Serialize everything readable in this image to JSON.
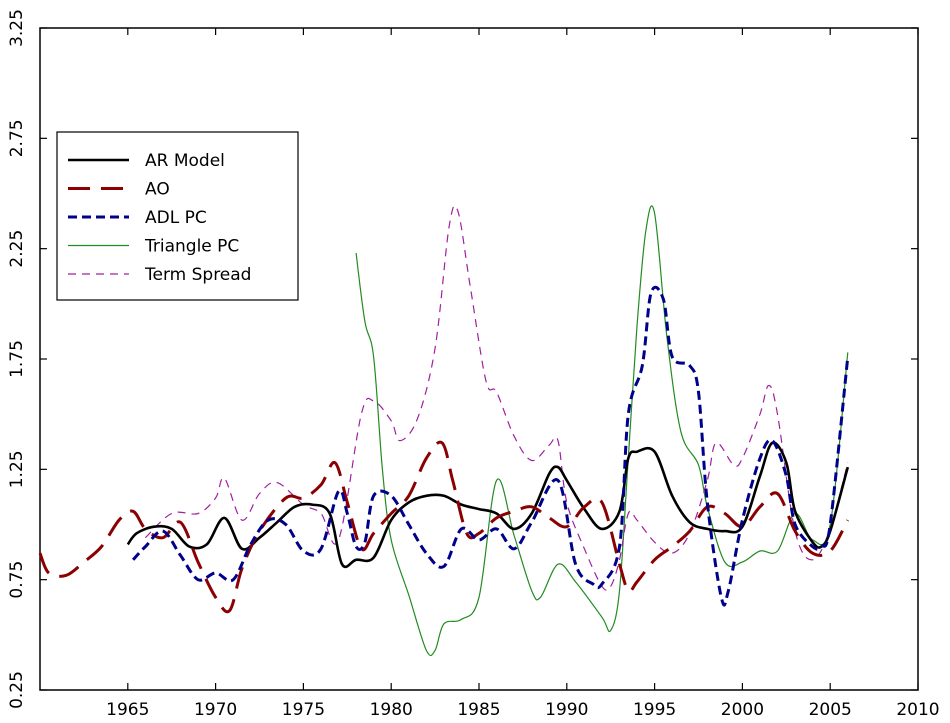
{
  "chart_data": {
    "type": "line",
    "xlim": [
      1960,
      2010
    ],
    "ylim": [
      0.25,
      3.25
    ],
    "xticks": [
      "1965",
      "1970",
      "1975",
      "1980",
      "1985",
      "1990",
      "1995",
      "2000",
      "2005",
      "2010"
    ],
    "yticks": [
      "0.25",
      "0.75",
      "1.25",
      "1.75",
      "2.25",
      "2.75",
      "3.25"
    ],
    "grid": false,
    "legend_position": "upper-left",
    "series": [
      {
        "name": "AR Model",
        "color": "#000000",
        "style": "solid-thick",
        "points": [
          [
            1965,
            0.91
          ],
          [
            1965.5,
            0.96
          ],
          [
            1966.5,
            0.99
          ],
          [
            1967.5,
            0.98
          ],
          [
            1968.5,
            0.9
          ],
          [
            1969.5,
            0.91
          ],
          [
            1970.5,
            1.03
          ],
          [
            1971.5,
            0.89
          ],
          [
            1972.5,
            0.94
          ],
          [
            1973.5,
            1.01
          ],
          [
            1974.5,
            1.08
          ],
          [
            1975.5,
            1.09
          ],
          [
            1976.5,
            1.05
          ],
          [
            1977.2,
            0.82
          ],
          [
            1978,
            0.84
          ],
          [
            1979,
            0.85
          ],
          [
            1980,
            1.02
          ],
          [
            1981,
            1.1
          ],
          [
            1982,
            1.13
          ],
          [
            1983,
            1.13
          ],
          [
            1984,
            1.09
          ],
          [
            1985,
            1.07
          ],
          [
            1986,
            1.05
          ],
          [
            1987,
            0.98
          ],
          [
            1988,
            1.05
          ],
          [
            1989,
            1.23
          ],
          [
            1989.5,
            1.26
          ],
          [
            1990,
            1.2
          ],
          [
            1991,
            1.07
          ],
          [
            1992,
            0.98
          ],
          [
            1993,
            1.06
          ],
          [
            1993.5,
            1.3
          ],
          [
            1994,
            1.33
          ],
          [
            1995,
            1.33
          ],
          [
            1996,
            1.13
          ],
          [
            1997,
            1.01
          ],
          [
            1998,
            0.98
          ],
          [
            1999,
            0.97
          ],
          [
            2000,
            0.99
          ],
          [
            2001,
            1.22
          ],
          [
            2001.7,
            1.37
          ],
          [
            2002.5,
            1.28
          ],
          [
            2003,
            1.06
          ],
          [
            2004,
            0.92
          ],
          [
            2004.5,
            0.9
          ],
          [
            2005,
            0.97
          ],
          [
            2006,
            1.26
          ]
        ]
      },
      {
        "name": "AO",
        "color": "#8b0000",
        "style": "long-dash",
        "points": [
          [
            1960,
            0.87
          ],
          [
            1960.5,
            0.78
          ],
          [
            1961.5,
            0.77
          ],
          [
            1962.5,
            0.83
          ],
          [
            1963.5,
            0.9
          ],
          [
            1964.5,
            1.02
          ],
          [
            1965.3,
            1.06
          ],
          [
            1966,
            0.98
          ],
          [
            1967,
            0.94
          ],
          [
            1968,
            1.01
          ],
          [
            1969,
            0.83
          ],
          [
            1970,
            0.67
          ],
          [
            1970.8,
            0.61
          ],
          [
            1971.5,
            0.8
          ],
          [
            1972.5,
            0.97
          ],
          [
            1974,
            1.12
          ],
          [
            1975,
            1.12
          ],
          [
            1976,
            1.18
          ],
          [
            1976.8,
            1.28
          ],
          [
            1977.5,
            1.1
          ],
          [
            1978.3,
            0.89
          ],
          [
            1979,
            0.96
          ],
          [
            1980,
            1.05
          ],
          [
            1981,
            1.13
          ],
          [
            1982,
            1.3
          ],
          [
            1982.9,
            1.37
          ],
          [
            1983.5,
            1.2
          ],
          [
            1984.3,
            0.96
          ],
          [
            1985,
            0.96
          ],
          [
            1986,
            1.03
          ],
          [
            1987,
            1.06
          ],
          [
            1988,
            1.08
          ],
          [
            1989,
            1.03
          ],
          [
            1990,
            0.99
          ],
          [
            1991,
            1.08
          ],
          [
            1992,
            1.1
          ],
          [
            1993,
            0.82
          ],
          [
            1993.5,
            0.7
          ],
          [
            1994,
            0.74
          ],
          [
            1995,
            0.84
          ],
          [
            1996,
            0.9
          ],
          [
            1997,
            0.97
          ],
          [
            1998,
            1.08
          ],
          [
            1999,
            1.05
          ],
          [
            2000,
            0.99
          ],
          [
            2001,
            1.08
          ],
          [
            2002,
            1.14
          ],
          [
            2003,
            0.97
          ],
          [
            2004,
            0.87
          ],
          [
            2005,
            0.88
          ],
          [
            2006,
            1.02
          ]
        ]
      },
      {
        "name": "ADL PC",
        "color": "#00008b",
        "style": "dash",
        "points": [
          [
            1965.3,
            0.84
          ],
          [
            1966,
            0.9
          ],
          [
            1967,
            0.97
          ],
          [
            1968,
            0.86
          ],
          [
            1969,
            0.75
          ],
          [
            1970,
            0.78
          ],
          [
            1971,
            0.75
          ],
          [
            1972,
            0.91
          ],
          [
            1973,
            1.02
          ],
          [
            1974,
            1.0
          ],
          [
            1975,
            0.88
          ],
          [
            1976,
            0.89
          ],
          [
            1977,
            1.15
          ],
          [
            1977.5,
            1.05
          ],
          [
            1978,
            0.9
          ],
          [
            1978.5,
            0.92
          ],
          [
            1979,
            1.13
          ],
          [
            1980,
            1.13
          ],
          [
            1981,
            1.0
          ],
          [
            1982,
            0.87
          ],
          [
            1983,
            0.81
          ],
          [
            1984,
            0.98
          ],
          [
            1985,
            0.93
          ],
          [
            1986,
            0.98
          ],
          [
            1987,
            0.89
          ],
          [
            1988,
            1.01
          ],
          [
            1989.5,
            1.2
          ],
          [
            1990.5,
            0.82
          ],
          [
            1991.5,
            0.73
          ],
          [
            1992,
            0.73
          ],
          [
            1993,
            0.9
          ],
          [
            1993.5,
            1.5
          ],
          [
            1994.3,
            1.72
          ],
          [
            1994.8,
            2.05
          ],
          [
            1995.5,
            2.02
          ],
          [
            1996,
            1.76
          ],
          [
            1997,
            1.72
          ],
          [
            1997.5,
            1.6
          ],
          [
            1998,
            1.1
          ],
          [
            1998.8,
            0.67
          ],
          [
            1999.2,
            0.7
          ],
          [
            2000,
            1.02
          ],
          [
            2001,
            1.3
          ],
          [
            2001.7,
            1.38
          ],
          [
            2002.5,
            1.22
          ],
          [
            2003,
            1.0
          ],
          [
            2004,
            0.9
          ],
          [
            2004.5,
            0.9
          ],
          [
            2005,
            1.0
          ],
          [
            2006,
            1.76
          ]
        ]
      },
      {
        "name": "Triangle PC",
        "color": "#228b22",
        "style": "solid-thin",
        "points": [
          [
            1978,
            2.23
          ],
          [
            1978.5,
            1.92
          ],
          [
            1979,
            1.76
          ],
          [
            1979.5,
            1.25
          ],
          [
            1980,
            0.93
          ],
          [
            1981,
            0.68
          ],
          [
            1982,
            0.43
          ],
          [
            1982.5,
            0.43
          ],
          [
            1983,
            0.55
          ],
          [
            1984,
            0.57
          ],
          [
            1985,
            0.67
          ],
          [
            1986,
            1.2
          ],
          [
            1987,
            0.95
          ],
          [
            1988,
            0.7
          ],
          [
            1988.5,
            0.67
          ],
          [
            1989.5,
            0.82
          ],
          [
            1990.5,
            0.74
          ],
          [
            1992,
            0.58
          ],
          [
            1992.5,
            0.52
          ],
          [
            1993,
            0.7
          ],
          [
            1993.5,
            1.3
          ],
          [
            1994,
            1.9
          ],
          [
            1994.5,
            2.33
          ],
          [
            1995,
            2.41
          ],
          [
            1995.7,
            1.85
          ],
          [
            1996.5,
            1.42
          ],
          [
            1997.5,
            1.27
          ],
          [
            1998,
            1.08
          ],
          [
            1999,
            0.83
          ],
          [
            2000,
            0.83
          ],
          [
            2001,
            0.88
          ],
          [
            2002,
            0.88
          ],
          [
            2003,
            1.05
          ],
          [
            2004,
            0.93
          ],
          [
            2005,
            1.0
          ],
          [
            2006,
            1.78
          ]
        ]
      },
      {
        "name": "Term Spread",
        "color": "#a020a0",
        "style": "dash-thin",
        "points": [
          [
            1966,
            0.94
          ],
          [
            1967.5,
            1.05
          ],
          [
            1969,
            1.05
          ],
          [
            1970,
            1.12
          ],
          [
            1970.5,
            1.21
          ],
          [
            1971.5,
            1.02
          ],
          [
            1972.5,
            1.14
          ],
          [
            1973.5,
            1.19
          ],
          [
            1975,
            1.09
          ],
          [
            1976,
            1.05
          ],
          [
            1977,
            0.93
          ],
          [
            1978.3,
            1.5
          ],
          [
            1979,
            1.56
          ],
          [
            1980,
            1.47
          ],
          [
            1980.5,
            1.38
          ],
          [
            1981.5,
            1.48
          ],
          [
            1982.5,
            1.8
          ],
          [
            1983.3,
            2.35
          ],
          [
            1983.8,
            2.42
          ],
          [
            1984.5,
            2.08
          ],
          [
            1985.4,
            1.65
          ],
          [
            1986,
            1.6
          ],
          [
            1987,
            1.4
          ],
          [
            1988,
            1.29
          ],
          [
            1989,
            1.36
          ],
          [
            1989.5,
            1.38
          ],
          [
            1990,
            1.1
          ],
          [
            1991,
            0.89
          ],
          [
            1992,
            0.72
          ],
          [
            1992.5,
            0.72
          ],
          [
            1993,
            0.84
          ],
          [
            1993.5,
            1.05
          ],
          [
            1994,
            1.02
          ],
          [
            1995,
            0.92
          ],
          [
            1996,
            0.87
          ],
          [
            1997,
            0.96
          ],
          [
            1998,
            1.2
          ],
          [
            1998.5,
            1.37
          ],
          [
            1999.5,
            1.27
          ],
          [
            2000,
            1.3
          ],
          [
            2001,
            1.5
          ],
          [
            2001.5,
            1.63
          ],
          [
            2002,
            1.5
          ],
          [
            2003,
            0.97
          ],
          [
            2004,
            0.84
          ],
          [
            2005,
            0.98
          ],
          [
            2006,
            1.28
          ]
        ]
      }
    ]
  }
}
